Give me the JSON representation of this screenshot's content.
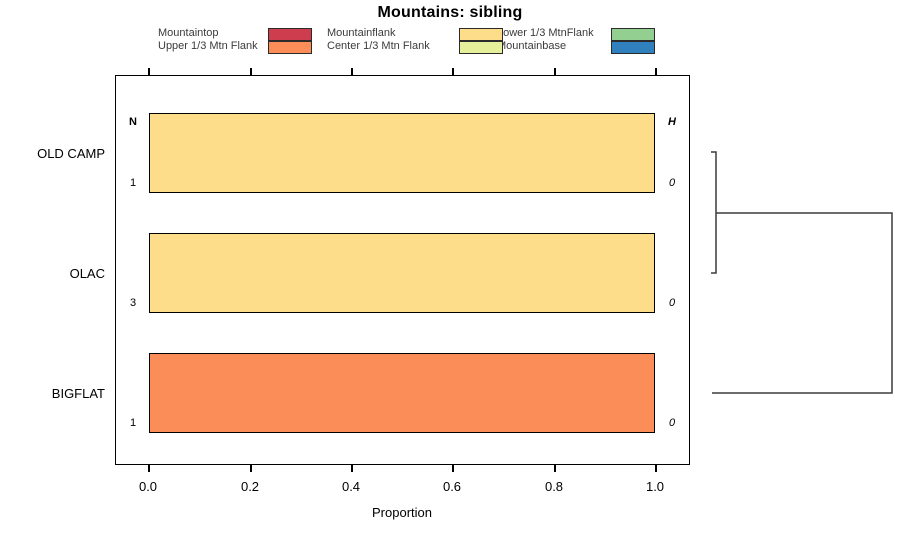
{
  "chart_data": {
    "type": "bar",
    "orientation": "horizontal",
    "title": "Mountains: sibling",
    "xlabel": "Proportion",
    "xlim": [
      0,
      1.04
    ],
    "xticks": [
      "0.0",
      "0.2",
      "0.4",
      "0.6",
      "0.8",
      "1.0"
    ],
    "grid": false,
    "legend_position": "top",
    "categories": [
      "OLD CAMP",
      "OLAC",
      "BIGFLAT"
    ],
    "column_headers": {
      "left": "N",
      "right": "H"
    },
    "bars": [
      {
        "category": "OLD CAMP",
        "class": "Mountainflank",
        "proportion": 1.0,
        "color": "#FDDD8A",
        "N": "1",
        "H": "0"
      },
      {
        "category": "OLAC",
        "class": "Mountainflank",
        "proportion": 1.0,
        "color": "#FDDD8A",
        "N": "3",
        "H": "0"
      },
      {
        "category": "BIGFLAT",
        "class": "Upper 1/3 Mtn Flank",
        "proportion": 1.0,
        "color": "#FB8D59",
        "N": "1",
        "H": "0"
      }
    ],
    "legend": [
      {
        "label": "Mountaintop",
        "color": "#CE3D4E"
      },
      {
        "label": "Upper 1/3 Mtn Flank",
        "color": "#FB8D59"
      },
      {
        "label": "Mountainflank",
        "color": "#FDDD8A"
      },
      {
        "label": "Center 1/3 Mtn Flank",
        "color": "#E6F09B"
      },
      {
        "label": "Lower 1/3 MtnFlank",
        "color": "#94CF92"
      },
      {
        "label": "Mountainbase",
        "color": "#2F80BD"
      }
    ],
    "dendrogram": {
      "type": "cluster-tree",
      "side": "right",
      "leaves": [
        "OLD CAMP",
        "OLAC",
        "BIGFLAT"
      ],
      "merges": [
        {
          "members": [
            "OLD CAMP",
            "OLAC"
          ],
          "relative_height": 0.03
        },
        {
          "members": [
            "OLD CAMP+OLAC",
            "BIGFLAT"
          ],
          "relative_height": 1.0
        }
      ]
    }
  }
}
